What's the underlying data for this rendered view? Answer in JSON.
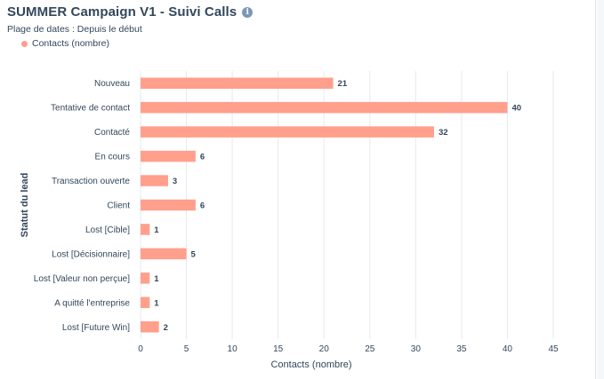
{
  "header": {
    "title": "SUMMER Campaign V1 - Suivi Calls",
    "info_icon": "info-icon",
    "date_range": "Plage de dates : Depuis le début"
  },
  "chart_data": {
    "type": "bar",
    "orientation": "horizontal",
    "categories": [
      "Nouveau",
      "Tentative de contact",
      "Contacté",
      "En cours",
      "Transaction ouverte",
      "Client",
      "Lost [Cible]",
      "Lost [Décisionnaire]",
      "Lost [Valeur non perçue]",
      "A quitté l'entreprise",
      "Lost [Future Win]"
    ],
    "series": [
      {
        "name": "Contacts (nombre)",
        "values": [
          21,
          40,
          32,
          6,
          3,
          6,
          1,
          5,
          1,
          1,
          2
        ]
      }
    ],
    "xlabel": "Contacts (nombre)",
    "ylabel": "Statut du lead",
    "xlim": [
      0,
      45
    ],
    "xticks": [
      0,
      5,
      10,
      15,
      20,
      25,
      30,
      35,
      40,
      45
    ],
    "grid": "vertical",
    "legend": "top-left",
    "bar_color": "#ff9f8c"
  }
}
